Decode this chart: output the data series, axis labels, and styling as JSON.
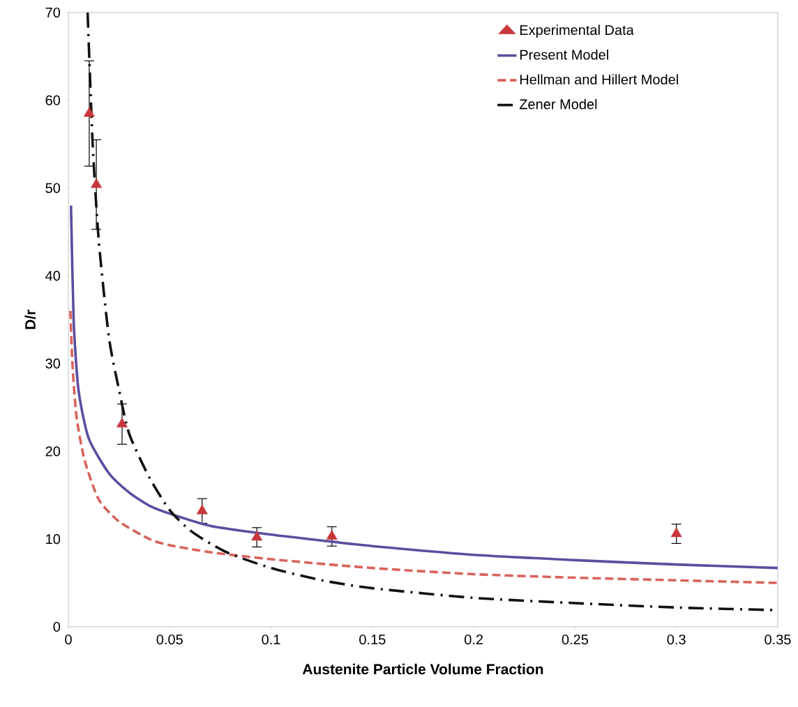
{
  "chart_data": {
    "type": "line",
    "xlabel": "Austenite Particle Volume Fraction",
    "ylabel": "D/r",
    "xlim": [
      0,
      0.35
    ],
    "ylim": [
      0,
      70
    ],
    "xticks": [
      0,
      0.05,
      0.1,
      0.15,
      0.2,
      0.25,
      0.3,
      0.35
    ],
    "yticks": [
      0,
      10,
      20,
      30,
      40,
      50,
      60,
      70
    ],
    "grid": false,
    "legend": "top right",
    "series": [
      {
        "name": "Experimental Data",
        "type": "scatter",
        "marker": "triangle",
        "color": "#c8373a",
        "x": [
          0.0103,
          0.0138,
          0.0265,
          0.066,
          0.093,
          0.13,
          0.3
        ],
        "values": [
          58.5,
          50.4,
          23.1,
          13.2,
          10.2,
          10.3,
          10.6
        ],
        "errors": [
          6,
          5.1,
          2.3,
          1.4,
          1.1,
          1.1,
          1.1
        ]
      },
      {
        "name": "Present Model",
        "type": "line",
        "line_style": "solid",
        "color": "#5b4ea0",
        "x": [
          0.0013,
          0.0026,
          0.005,
          0.01,
          0.02,
          0.03,
          0.04,
          0.05,
          0.07,
          0.1,
          0.13,
          0.15,
          0.2,
          0.25,
          0.3,
          0.35
        ],
        "values": [
          48,
          35,
          27,
          21.5,
          17.5,
          15.3,
          13.8,
          12.9,
          11.5,
          10.5,
          9.7,
          9.2,
          8.2,
          7.6,
          7.1,
          6.7
        ]
      },
      {
        "name": "Hellman and Hillert Model",
        "type": "line",
        "line_style": "dashed",
        "color": "#d9625a",
        "x": [
          0.001,
          0.002,
          0.004,
          0.008,
          0.015,
          0.025,
          0.04,
          0.05,
          0.07,
          0.1,
          0.15,
          0.2,
          0.25,
          0.3,
          0.35
        ],
        "values": [
          36,
          30,
          24,
          19,
          14.5,
          12,
          10,
          9.3,
          8.5,
          7.7,
          6.7,
          6,
          5.6,
          5.3,
          5
        ]
      },
      {
        "name": "Zener Model",
        "type": "line",
        "line_style": "dashdot",
        "color": "#111111",
        "x": [
          0.0095,
          0.012,
          0.015,
          0.02,
          0.025,
          0.03,
          0.04,
          0.05,
          0.06,
          0.07,
          0.08,
          0.1,
          0.125,
          0.15,
          0.2,
          0.25,
          0.3,
          0.35
        ],
        "values": [
          70,
          55,
          44,
          33,
          27,
          22,
          17,
          13.3,
          11,
          9.5,
          8.3,
          6.7,
          5.3,
          4.4,
          3.3,
          2.7,
          2.2,
          1.9
        ]
      }
    ]
  }
}
